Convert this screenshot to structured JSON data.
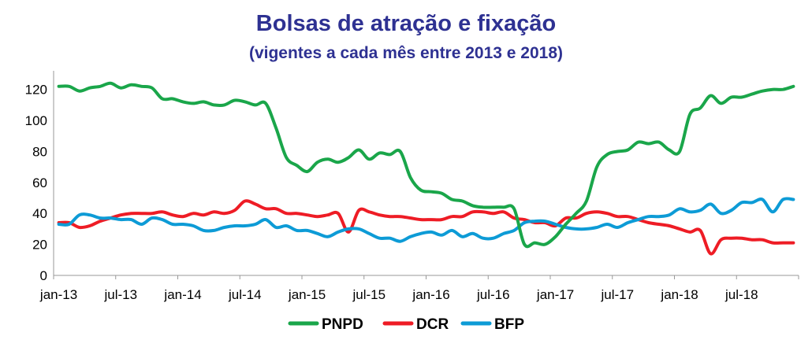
{
  "chart_data": {
    "type": "line",
    "title": "Bolsas de atração e fixação",
    "subtitle": "(vigentes a cada mês entre 2013 e 2018)",
    "xlabel": "",
    "ylabel": "",
    "ylim": [
      0,
      130
    ],
    "yticks": [
      0,
      20,
      40,
      60,
      80,
      100,
      120
    ],
    "x_tick_labels": [
      "jan-13",
      "jul-13",
      "jan-14",
      "jul-14",
      "jan-15",
      "jul-15",
      "jan-16",
      "jul-16",
      "jan-17",
      "jul-17",
      "jan-18",
      "jul-18"
    ],
    "months": 72,
    "grid": false,
    "legend_position": "bottom",
    "series": [
      {
        "name": "PNPD",
        "color": "#1aa64a",
        "values": [
          122,
          122,
          119,
          121,
          122,
          124,
          121,
          123,
          122,
          121,
          114,
          114,
          112,
          111,
          112,
          110,
          110,
          113,
          112,
          110,
          111,
          95,
          76,
          71,
          67,
          73,
          75,
          73,
          76,
          81,
          75,
          79,
          78,
          80,
          63,
          55,
          54,
          53,
          49,
          48,
          45,
          44,
          44,
          44,
          43,
          20,
          21,
          20,
          25,
          33,
          40,
          48,
          70,
          78,
          80,
          81,
          86,
          85,
          86,
          81,
          80,
          104,
          108,
          116,
          111,
          115,
          115,
          117,
          119,
          120,
          120,
          122
        ]
      },
      {
        "name": "DCR",
        "color": "#ee1c25",
        "values": [
          34,
          34,
          31,
          32,
          35,
          37,
          39,
          40,
          40,
          40,
          41,
          39,
          38,
          40,
          39,
          41,
          40,
          42,
          48,
          46,
          43,
          43,
          40,
          40,
          39,
          38,
          39,
          40,
          28,
          42,
          41,
          39,
          38,
          38,
          37,
          36,
          36,
          36,
          38,
          38,
          41,
          41,
          40,
          41,
          37,
          36,
          34,
          34,
          32,
          37,
          37,
          40,
          41,
          40,
          38,
          38,
          36,
          34,
          33,
          32,
          30,
          28,
          29,
          14,
          23,
          24,
          24,
          23,
          23,
          21,
          21,
          21
        ]
      },
      {
        "name": "BFP",
        "color": "#0d9bd6",
        "values": [
          33,
          33,
          39,
          39,
          37,
          37,
          36,
          36,
          33,
          37,
          36,
          33,
          33,
          32,
          29,
          29,
          31,
          32,
          32,
          33,
          36,
          31,
          32,
          29,
          29,
          27,
          25,
          28,
          30,
          30,
          27,
          24,
          24,
          22,
          25,
          27,
          28,
          26,
          29,
          25,
          27,
          24,
          24,
          27,
          29,
          34,
          35,
          35,
          33,
          31,
          30,
          30,
          31,
          33,
          31,
          34,
          36,
          38,
          38,
          39,
          43,
          41,
          42,
          46,
          40,
          42,
          47,
          47,
          49,
          41,
          49,
          49
        ]
      }
    ]
  }
}
